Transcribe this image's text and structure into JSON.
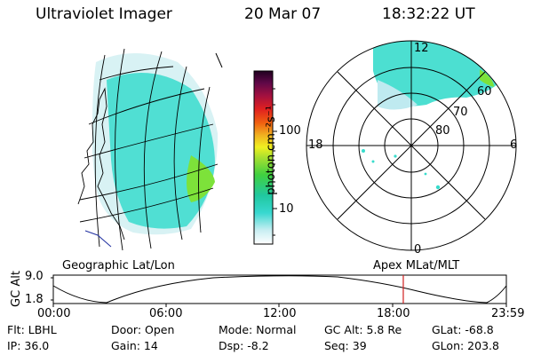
{
  "header": {
    "title": "Ultraviolet Imager",
    "date": "20 Mar 07",
    "time": "18:32:22 UT"
  },
  "colorbar": {
    "unit_label": "photon cm⁻²s⁻¹",
    "ticks": [
      "100",
      "10"
    ]
  },
  "polar_map": {
    "mlt_labels": [
      "12",
      "18",
      "6",
      "0"
    ],
    "lat_labels": [
      "60",
      "70",
      "80"
    ]
  },
  "map_labels": {
    "left": "Geographic Lat/Lon",
    "right": "Apex MLat/MLT"
  },
  "orbit_plot": {
    "axis_title": "GC Alt",
    "y_ticks": [
      "9.0",
      "1.8"
    ],
    "x_ticks": [
      "00:00",
      "06:00",
      "12:00",
      "18:00",
      "23:59"
    ],
    "current_time_marker_hours": 18.54
  },
  "footer": {
    "row1": {
      "filter": "Flt: LBHL",
      "door": "Door: Open",
      "mode": "Mode: Normal",
      "gc_alt": "GC Alt: 5.8 Re",
      "glat": "GLat: -68.8"
    },
    "row2": {
      "ip": "IP: 36.0",
      "gain": "Gain: 14",
      "dsp": "Dsp:   -8.2",
      "seq": "Seq: 39",
      "glon": "GLon: 203.8"
    }
  },
  "colors": {
    "aurora_main": "#2ee0c8",
    "aurora_green": "#7de23a",
    "aurora_light": "#c9eef0",
    "marker": "#d02020"
  }
}
